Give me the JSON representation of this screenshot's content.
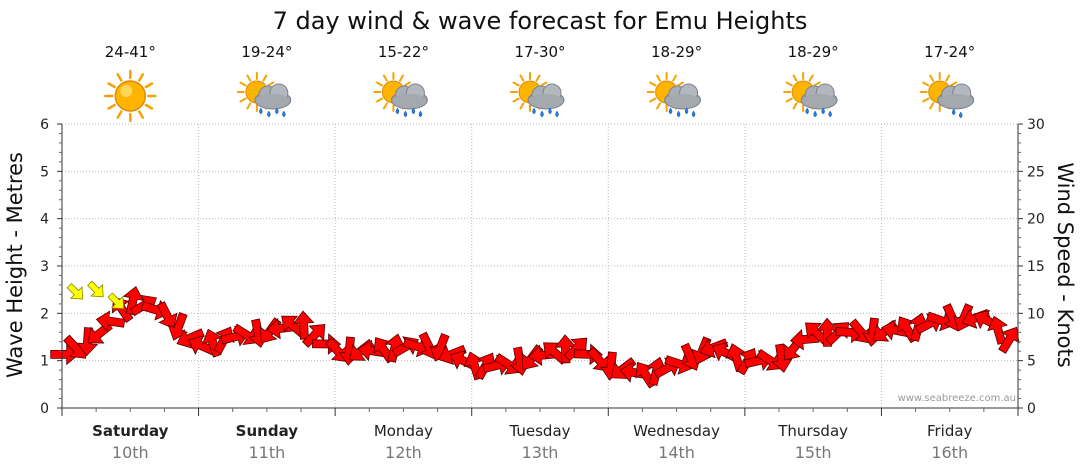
{
  "chart_data": {
    "type": "line",
    "title": "7 day wind & wave forecast for Emu Heights",
    "ylabel": "Wave Height - Metres",
    "ylabel_right": "Wind Speed - Knots",
    "ylim": [
      0,
      6
    ],
    "ylim_right": [
      0,
      30
    ],
    "yticks_left": [
      "0",
      "1",
      "2",
      "3",
      "4",
      "5",
      "6"
    ],
    "yticks_right": [
      "0",
      "5",
      "10",
      "15",
      "20",
      "25",
      "30"
    ],
    "grid": true,
    "days": [
      {
        "name": "Saturday",
        "date": "10th",
        "temp": "24-41°",
        "weather": "sunny-icon",
        "bold": true
      },
      {
        "name": "Sunday",
        "date": "11th",
        "temp": "19-24°",
        "weather": "rain-icon",
        "bold": true
      },
      {
        "name": "Monday",
        "date": "12th",
        "temp": "15-22°",
        "weather": "rain-icon",
        "bold": false
      },
      {
        "name": "Tuesday",
        "date": "13th",
        "temp": "17-30°",
        "weather": "rain-icon",
        "bold": false
      },
      {
        "name": "Wednesday",
        "date": "14th",
        "temp": "18-29°",
        "weather": "rain-icon",
        "bold": false
      },
      {
        "name": "Thursday",
        "date": "15th",
        "temp": "18-29°",
        "weather": "rain-icon",
        "bold": false
      },
      {
        "name": "Friday",
        "date": "16th",
        "temp": "17-24°",
        "weather": "shower-icon",
        "bold": false
      }
    ],
    "wind_series": {
      "name": "Wind",
      "x": [
        0.0,
        0.25,
        0.5,
        0.75,
        1.0,
        1.25,
        1.5,
        1.75,
        2.0,
        2.25,
        2.5,
        2.75,
        3.0,
        3.25,
        3.5,
        3.75,
        4.0,
        4.25,
        4.5,
        4.75,
        5.0,
        5.25,
        5.5,
        5.75,
        6.0,
        6.25,
        6.5,
        6.75,
        7.0
      ],
      "knots": [
        5.5,
        7.5,
        11.5,
        10.0,
        6.5,
        7.5,
        8.0,
        9.0,
        6.0,
        6.0,
        6.5,
        6.5,
        4.5,
        4.5,
        5.5,
        6.5,
        4.5,
        3.5,
        4.5,
        6.5,
        5.0,
        5.0,
        8.0,
        8.0,
        8.0,
        8.5,
        9.5,
        9.5,
        6.5
      ],
      "color": "#ff0000"
    },
    "wave_series": {
      "name": "Wave",
      "x": [
        0.1,
        0.25,
        0.4
      ],
      "values": [
        2.45,
        2.5,
        2.25
      ],
      "color": "#ffff00"
    }
  },
  "watermark": "www.seabreeze.com.au"
}
